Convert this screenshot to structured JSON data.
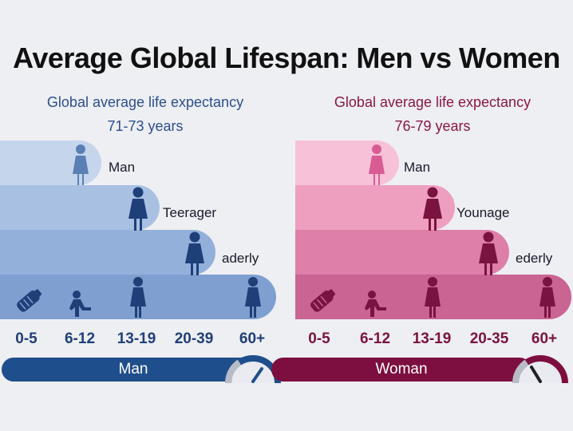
{
  "title": "Average Global Lifespan: Men vs Women",
  "man": {
    "subtitle_line1": "Global average life expectancy",
    "subtitle_line2": "71-73 years",
    "stages": [
      "Man",
      "Teerager",
      "aderly"
    ],
    "ages": [
      "0-5",
      "6-12",
      "13-19",
      "20-39",
      "60+"
    ],
    "band_label": "Man",
    "colors": {
      "dark": "#1f4e8c",
      "bar1": "#c5d6ec",
      "bar2": "#a8c0e2",
      "bar3": "#92b0da",
      "bar4": "#7f9fd0",
      "icon": "#1e3f78"
    }
  },
  "woman": {
    "subtitle_line1": "Global average life expectancy",
    "subtitle_line2": "76-79 years",
    "stages": [
      "Man",
      "Younage",
      "ederly"
    ],
    "ages": [
      "0-5",
      "6-12",
      "13-19",
      "20-35",
      "60+"
    ],
    "band_label": "Woman",
    "colors": {
      "dark": "#7c0f3f",
      "bar1": "#f7c2d8",
      "bar2": "#ee9fc0",
      "bar3": "#dd7fa8",
      "bar4": "#c96493",
      "icon": "#7a1340"
    }
  }
}
